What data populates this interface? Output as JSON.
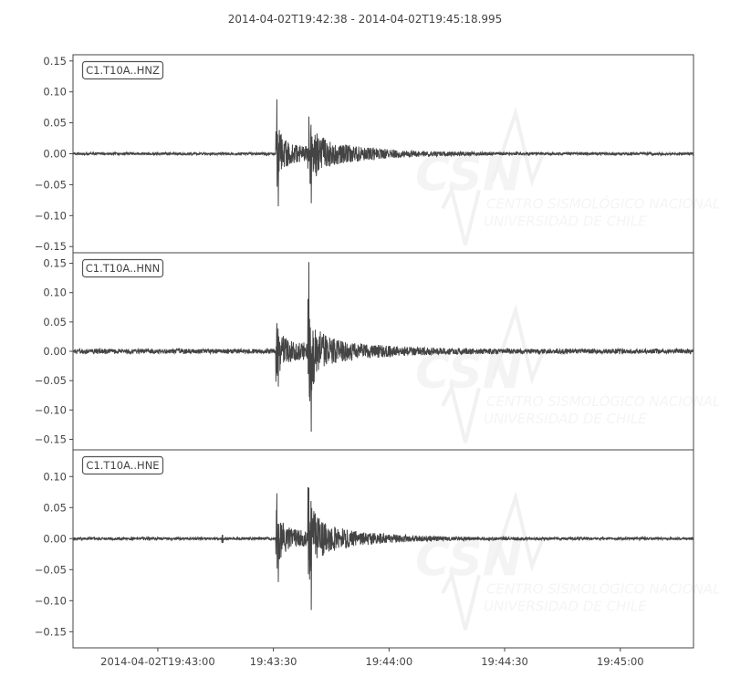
{
  "chart_data": {
    "type": "line",
    "title": "2014-04-02T19:42:38  -  2014-04-02T19:45:18.995",
    "xlim": [
      "2014-04-02T19:42:38",
      "2014-04-02T19:45:18.995"
    ],
    "x_ticks": [
      {
        "time": "2014-04-02T19:43:00",
        "label": "2014-04-02T19:43:00"
      },
      {
        "time": "2014-04-02T19:43:30",
        "label": "19:43:30"
      },
      {
        "time": "2014-04-02T19:44:00",
        "label": "19:44:00"
      },
      {
        "time": "2014-04-02T19:44:30",
        "label": "19:44:30"
      },
      {
        "time": "2014-04-02T19:45:00",
        "label": "19:45:00"
      }
    ],
    "y_tick_values": [
      0.15,
      0.1,
      0.05,
      0.0,
      -0.05,
      -0.1,
      -0.15
    ],
    "y_tick_labels": [
      "0.15",
      "0.10",
      "0.05",
      "0.00",
      "−0.05",
      "−0.10",
      "−0.15"
    ],
    "grid": false,
    "line_color": "#444444",
    "series": [
      {
        "name": "C1.T10A..HNZ",
        "ylim": [
          -0.16,
          0.16
        ],
        "noise": 0.002,
        "p_arrival": "2014-04-02T19:43:30.6",
        "s_arrival": "2014-04-02T19:43:38.9",
        "p_peak": [
          0.088,
          -0.085
        ],
        "s_peak": [
          0.06,
          -0.08
        ]
      },
      {
        "name": "C1.T10A..HNN",
        "ylim": [
          -0.168,
          0.168
        ],
        "noise": 0.004,
        "p_arrival": "2014-04-02T19:43:30.6",
        "s_arrival": "2014-04-02T19:43:38.9",
        "p_peak": [
          0.048,
          -0.06
        ],
        "s_peak": [
          0.152,
          -0.137
        ]
      },
      {
        "name": "C1.T10A..HNE",
        "ylim": [
          -0.176,
          0.143
        ],
        "noise": 0.002,
        "p_arrival": "2014-04-02T19:43:30.6",
        "s_arrival": "2014-04-02T19:43:38.9",
        "p_peak": [
          0.073,
          -0.07
        ],
        "s_peak": [
          0.082,
          -0.115
        ]
      }
    ]
  },
  "watermark": {
    "logo": "CSN",
    "line1": "CENTRO SISMOLÓGICO NACIONAL",
    "line2": "UNIVERSIDAD DE CHILE"
  }
}
